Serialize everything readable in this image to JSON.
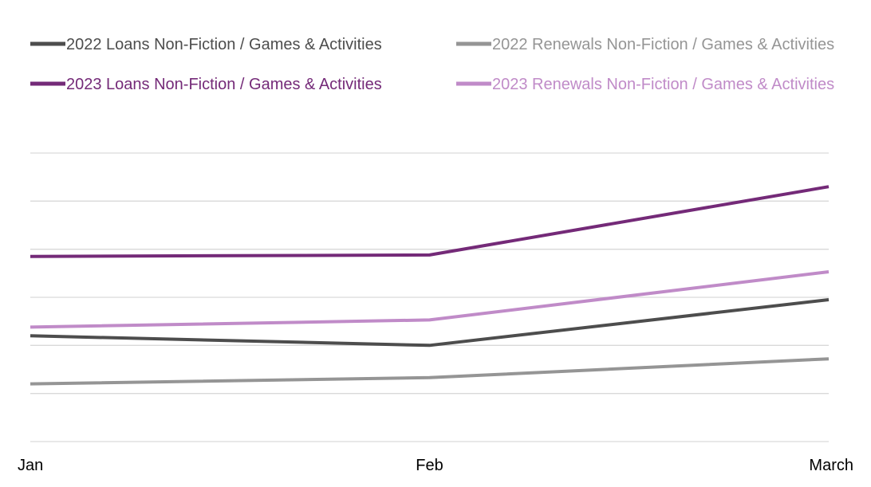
{
  "chart_data": {
    "type": "line",
    "title": "",
    "xlabel": "",
    "ylabel": "",
    "categories": [
      "Jan",
      "Feb",
      "March"
    ],
    "ylim": [
      0,
      6
    ],
    "y_gridlines": [
      0,
      1,
      2,
      3,
      4,
      5,
      6
    ],
    "y_tick_labels_shown": false,
    "grid": true,
    "legend_position": "top",
    "series": [
      {
        "name": "2022 Loans Non-Fiction / Games & Activities",
        "color": "#4d4d4d",
        "values": [
          2.2,
          2.0,
          2.95
        ]
      },
      {
        "name": "2022 Renewals Non-Fiction / Games & Activities",
        "color": "#959595",
        "values": [
          1.2,
          1.33,
          1.72
        ]
      },
      {
        "name": "2023 Loans Non-Fiction / Games & Activities",
        "color": "#742a78",
        "values": [
          3.85,
          3.88,
          5.3
        ]
      },
      {
        "name": "2023 Renewals Non-Fiction / Games & Activities",
        "color": "#c08bc8",
        "values": [
          2.38,
          2.53,
          3.53
        ]
      }
    ]
  }
}
